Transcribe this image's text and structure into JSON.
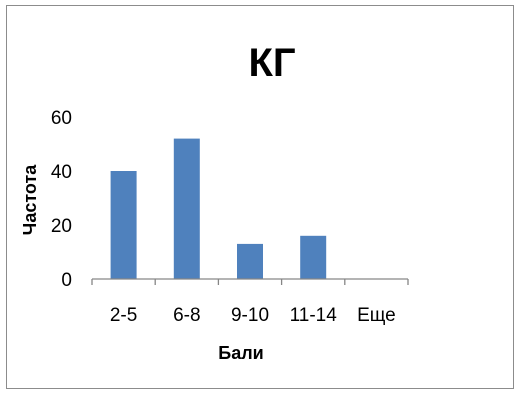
{
  "chart_data": {
    "type": "bar",
    "title": "КГ",
    "xlabel": "Бали",
    "ylabel": "Частота",
    "categories": [
      "2-5",
      "6-8",
      "9-10",
      "11-14",
      "Еще"
    ],
    "values": [
      40,
      52,
      13,
      16,
      0
    ],
    "ylim": [
      0,
      60
    ],
    "yticks": [
      0,
      20,
      40,
      60
    ],
    "grid": false,
    "legend": "none",
    "bar_color": "#4f81bd"
  }
}
